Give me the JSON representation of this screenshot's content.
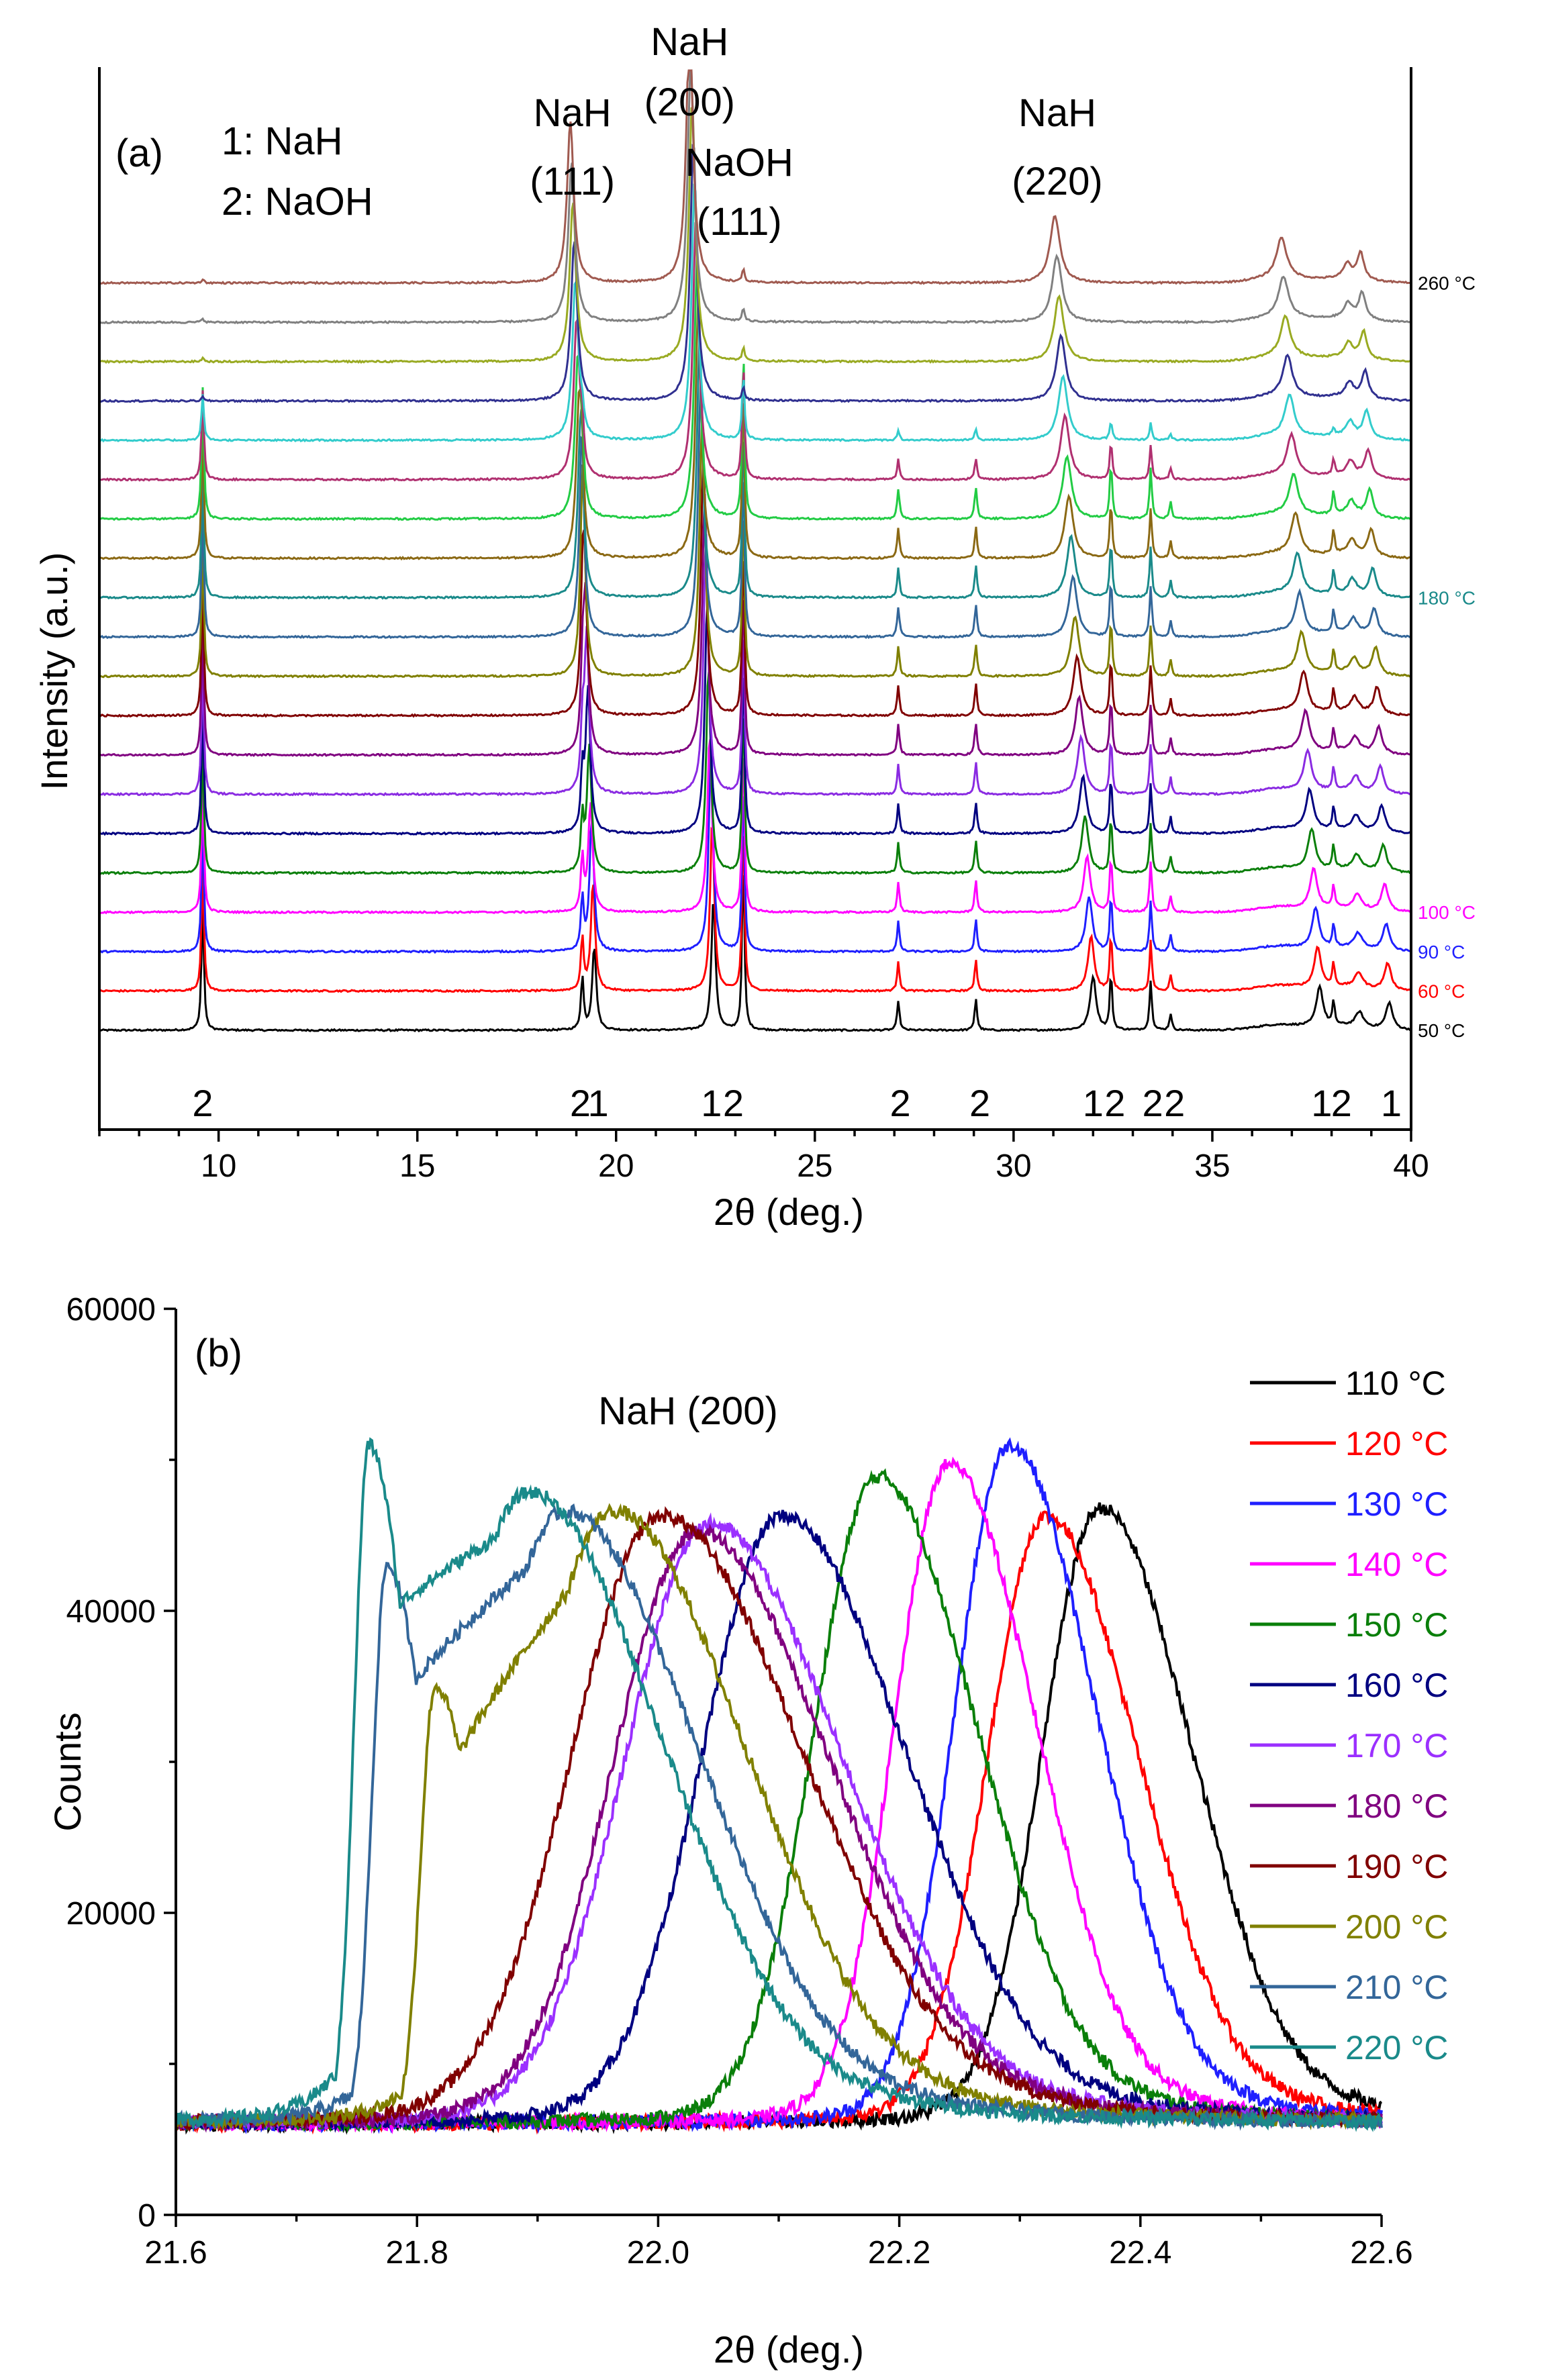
{
  "chart_data": [
    {
      "panel": "(a)",
      "type": "line",
      "xlabel": "2θ (deg.)",
      "ylabel": "Intensity (a.u.)",
      "xlim": [
        7,
        40
      ],
      "xticks": [
        10,
        15,
        20,
        25,
        30,
        35,
        40
      ],
      "legend_key": [
        "1: NaH",
        "2: NaOH"
      ],
      "annotations": [
        {
          "line1": "NaH",
          "line2": "(111)",
          "x": 18.9
        },
        {
          "line1": "NaH",
          "line2": "(200)",
          "x": 21.85
        },
        {
          "line1": "NaOH",
          "line2": "(111)",
          "x": 23.1
        },
        {
          "line1": "NaH",
          "line2": "(220)",
          "x": 31.1
        }
      ],
      "peak_indices": [
        {
          "label": "2",
          "x": 9.6
        },
        {
          "label": "2",
          "x": 19.1
        },
        {
          "label": "1",
          "x": 19.55
        },
        {
          "label": "1",
          "x": 22.4
        },
        {
          "label": "2",
          "x": 22.95
        },
        {
          "label": "2",
          "x": 27.15
        },
        {
          "label": "2",
          "x": 29.15
        },
        {
          "label": "1",
          "x": 32.0
        },
        {
          "label": "2",
          "x": 32.55
        },
        {
          "label": "2",
          "x": 33.5
        },
        {
          "label": "2",
          "x": 34.05
        },
        {
          "label": "1",
          "x": 37.75
        },
        {
          "label": "2",
          "x": 38.25
        },
        {
          "label": "1",
          "x": 39.5
        }
      ],
      "temperature_labels": [
        {
          "text": "50 °C",
          "trace": 0,
          "color": "#000000"
        },
        {
          "text": "60 °C",
          "trace": 1,
          "color": "#ff0000"
        },
        {
          "text": "90 °C",
          "trace": 2,
          "color": "#1f1fff"
        },
        {
          "text": "100 °C",
          "trace": 3,
          "color": "#ff00ff"
        },
        {
          "text": "180 °C",
          "trace": 11,
          "color": "#1a8a8a"
        },
        {
          "text": "260 °C",
          "trace": 19,
          "color": "#000000"
        }
      ],
      "traces": [
        {
          "color": "#000000",
          "t": 0
        },
        {
          "color": "#ff0000",
          "t": 1
        },
        {
          "color": "#1f1fff",
          "t": 2
        },
        {
          "color": "#ff00ff",
          "t": 3
        },
        {
          "color": "#0a7f0a",
          "t": 4
        },
        {
          "color": "#000080",
          "t": 5
        },
        {
          "color": "#8a2be2",
          "t": 6
        },
        {
          "color": "#800080",
          "t": 7
        },
        {
          "color": "#800000",
          "t": 8
        },
        {
          "color": "#808000",
          "t": 9
        },
        {
          "color": "#336699",
          "t": 10
        },
        {
          "color": "#1a8a8a",
          "t": 11
        },
        {
          "color": "#8b6914",
          "t": 12
        },
        {
          "color": "#22cc44",
          "t": 13
        },
        {
          "color": "#b03070",
          "t": 14
        },
        {
          "color": "#33cccc",
          "t": 15
        },
        {
          "color": "#303090",
          "t": 16
        },
        {
          "color": "#99aa22",
          "t": 17
        },
        {
          "color": "#808080",
          "t": 18
        },
        {
          "color": "#a05a50",
          "t": 19
        }
      ]
    },
    {
      "panel": "(b)",
      "type": "line",
      "title": "NaH (200)",
      "xlabel": "2θ (deg.)",
      "ylabel": "Counts",
      "xlim": [
        21.6,
        22.6
      ],
      "ylim": [
        0,
        60000
      ],
      "xticks": [
        21.6,
        21.8,
        22.0,
        22.2,
        22.4,
        22.6
      ],
      "yticks": [
        0,
        20000,
        40000,
        60000
      ],
      "baseline": 6000,
      "series": [
        {
          "name": "110 °C",
          "color": "#000000",
          "peak_x": 22.365,
          "peak_y": 45000,
          "width": 0.055
        },
        {
          "name": "120 °C",
          "color": "#ff0000",
          "peak_x": 22.32,
          "peak_y": 44500,
          "width": 0.055
        },
        {
          "name": "130 °C",
          "color": "#1f1fff",
          "peak_x": 22.29,
          "peak_y": 49000,
          "width": 0.052
        },
        {
          "name": "140 °C",
          "color": "#ff00ff",
          "peak_x": 22.24,
          "peak_y": 47800,
          "width": 0.052
        },
        {
          "name": "150 °C",
          "color": "#0a7f0a",
          "peak_x": 22.18,
          "peak_y": 47000,
          "width": 0.06
        },
        {
          "name": "160 °C",
          "color": "#000080",
          "peak_x": 22.1,
          "peak_y": 44500,
          "width": 0.075
        },
        {
          "name": "170 °C",
          "color": "#9b30ff",
          "peak_x": 22.04,
          "peak_y": 44000,
          "width": 0.08
        },
        {
          "name": "180 °C",
          "color": "#800080",
          "peak_x": 22.03,
          "peak_y": 43500,
          "width": 0.08
        },
        {
          "name": "190 °C",
          "color": "#800000",
          "peak_x": 22.0,
          "peak_y": 44500,
          "width": 0.085
        },
        {
          "name": "200 °C",
          "color": "#808000",
          "peak_x": 21.96,
          "peak_y": 44800,
          "width": 0.08,
          "shoulder_x": 21.815,
          "shoulder_y": 35000
        },
        {
          "name": "210 °C",
          "color": "#336699",
          "peak_x": 21.92,
          "peak_y": 44800,
          "width": 0.08,
          "shoulder_x": 21.775,
          "shoulder_y": 43000
        },
        {
          "name": "220 °C",
          "color": "#1a8a8a",
          "peak_x": 21.89,
          "peak_y": 46000,
          "width": 0.08,
          "shoulder_x": 21.76,
          "shoulder_y": 51000
        }
      ]
    }
  ]
}
